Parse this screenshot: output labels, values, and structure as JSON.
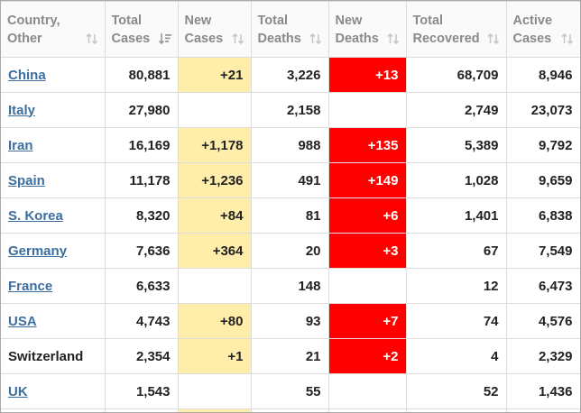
{
  "table": {
    "headers": [
      {
        "label": "Country,\nOther",
        "sort": "both"
      },
      {
        "label": "Total\nCases",
        "sort": "desc"
      },
      {
        "label": "New\nCases",
        "sort": "both"
      },
      {
        "label": "Total\nDeaths",
        "sort": "both"
      },
      {
        "label": "New\nDeaths",
        "sort": "both"
      },
      {
        "label": "Total\nRecovered",
        "sort": "both"
      },
      {
        "label": "Active\nCases",
        "sort": "both"
      }
    ],
    "rows": [
      {
        "country": "China",
        "link": true,
        "total_cases": "80,881",
        "new_cases": "+21",
        "total_deaths": "3,226",
        "new_deaths": "+13",
        "total_recovered": "68,709",
        "active_cases": "8,946"
      },
      {
        "country": "Italy",
        "link": true,
        "total_cases": "27,980",
        "new_cases": "",
        "total_deaths": "2,158",
        "new_deaths": "",
        "total_recovered": "2,749",
        "active_cases": "23,073"
      },
      {
        "country": "Iran",
        "link": true,
        "total_cases": "16,169",
        "new_cases": "+1,178",
        "total_deaths": "988",
        "new_deaths": "+135",
        "total_recovered": "5,389",
        "active_cases": "9,792"
      },
      {
        "country": "Spain",
        "link": true,
        "total_cases": "11,178",
        "new_cases": "+1,236",
        "total_deaths": "491",
        "new_deaths": "+149",
        "total_recovered": "1,028",
        "active_cases": "9,659"
      },
      {
        "country": "S. Korea",
        "link": true,
        "total_cases": "8,320",
        "new_cases": "+84",
        "total_deaths": "81",
        "new_deaths": "+6",
        "total_recovered": "1,401",
        "active_cases": "6,838"
      },
      {
        "country": "Germany",
        "link": true,
        "total_cases": "7,636",
        "new_cases": "+364",
        "total_deaths": "20",
        "new_deaths": "+3",
        "total_recovered": "67",
        "active_cases": "7,549"
      },
      {
        "country": "France",
        "link": true,
        "total_cases": "6,633",
        "new_cases": "",
        "total_deaths": "148",
        "new_deaths": "",
        "total_recovered": "12",
        "active_cases": "6,473"
      },
      {
        "country": "USA",
        "link": true,
        "total_cases": "4,743",
        "new_cases": "+80",
        "total_deaths": "93",
        "new_deaths": "+7",
        "total_recovered": "74",
        "active_cases": "4,576"
      },
      {
        "country": "Switzerland",
        "link": false,
        "total_cases": "2,354",
        "new_cases": "+1",
        "total_deaths": "21",
        "new_deaths": "+2",
        "total_recovered": "4",
        "active_cases": "2,329"
      },
      {
        "country": "UK",
        "link": true,
        "total_cases": "1,543",
        "new_cases": "",
        "total_deaths": "55",
        "new_deaths": "",
        "total_recovered": "52",
        "active_cases": "1,436"
      }
    ],
    "partial_row": {
      "new_cases_highlighted": true
    }
  },
  "colors": {
    "new_cases_highlight": "#ffeeaa",
    "new_deaths_highlight": "#ff0000",
    "link": "#3c6ea0",
    "header_text": "#8a8a8a"
  },
  "icons": {
    "sort_both": "sort-arrows-icon",
    "sort_desc": "sort-descending-icon"
  }
}
